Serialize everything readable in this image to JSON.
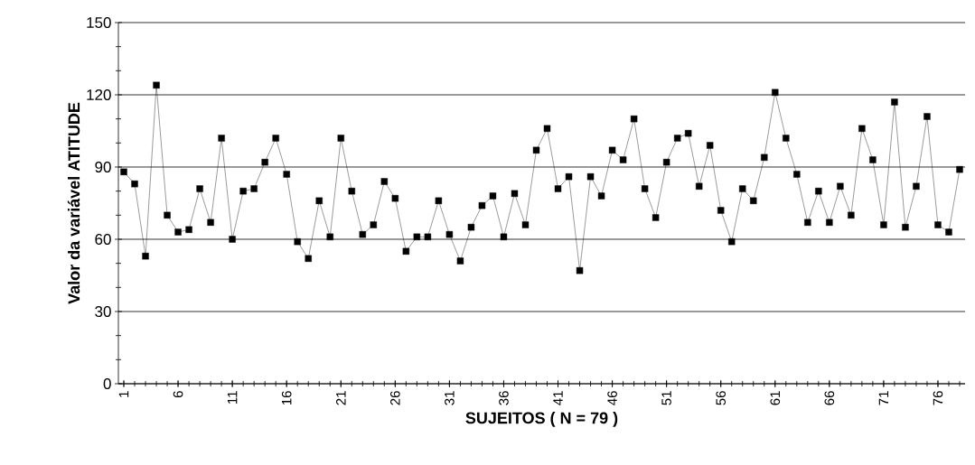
{
  "chart_data": {
    "type": "line",
    "xlabel": "SUJEITOS   ( N = 79 )",
    "ylabel": "Valor da variável  ATITUDE",
    "categories": [
      "1",
      null,
      null,
      null,
      null,
      "6",
      null,
      null,
      null,
      null,
      "11",
      null,
      null,
      null,
      null,
      "16",
      null,
      null,
      null,
      null,
      "21",
      null,
      null,
      null,
      null,
      "26",
      null,
      null,
      null,
      null,
      "31",
      null,
      null,
      null,
      null,
      "36",
      null,
      null,
      null,
      null,
      "41",
      null,
      null,
      null,
      null,
      "46",
      null,
      null,
      null,
      null,
      "51",
      null,
      null,
      null,
      null,
      "56",
      null,
      null,
      null,
      null,
      "61",
      null,
      null,
      null,
      null,
      "66",
      null,
      null,
      null,
      null,
      "71",
      null,
      null,
      null,
      null,
      "76",
      null,
      null
    ],
    "values": [
      88,
      83,
      53,
      124,
      70,
      63,
      64,
      81,
      67,
      102,
      60,
      80,
      81,
      92,
      102,
      87,
      59,
      52,
      76,
      61,
      102,
      80,
      62,
      66,
      84,
      77,
      55,
      61,
      61,
      76,
      62,
      51,
      65,
      74,
      78,
      61,
      79,
      66,
      97,
      106,
      81,
      86,
      47,
      86,
      78,
      97,
      93,
      110,
      81,
      69,
      92,
      102,
      104,
      82,
      99,
      72,
      59,
      81,
      76,
      94,
      121,
      102,
      87,
      67,
      80,
      67,
      82,
      70,
      106,
      93,
      66,
      117,
      65,
      82,
      111,
      66,
      63,
      89
    ],
    "color": "#000000",
    "marker": "square",
    "line_style": "solid",
    "grid": "y",
    "ylim": [
      0,
      150
    ],
    "yticks": [
      0,
      30,
      60,
      90,
      120,
      150
    ]
  }
}
